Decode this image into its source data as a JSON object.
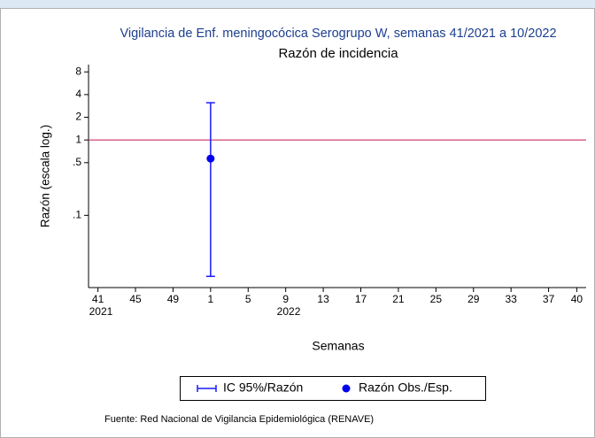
{
  "chart_data": {
    "type": "errorbar",
    "title": "Vigilancia de Enf. meningocócica Serogrupo W, semanas 41/2021 a 10/2022",
    "subtitle": "Razón de incidencia",
    "y_label": "Razón (escala log.)",
    "x_label": "Semanas",
    "source": "Fuente: Red Nacional de Vigilancia Epidemiológica (RENAVE)",
    "log_y": true,
    "xlim": [
      -1,
      52
    ],
    "ylim": [
      0.011,
      10
    ],
    "yticks": [
      8,
      4,
      2,
      1,
      {
        "value": 0.5,
        "label": ".5"
      },
      {
        "value": 0.1,
        "label": ".1"
      }
    ],
    "xticks": [
      {
        "value": 0,
        "label": "41"
      },
      {
        "value": 4,
        "label": "45"
      },
      {
        "value": 8,
        "label": "49"
      },
      {
        "value": 12,
        "label": "1"
      },
      {
        "value": 16,
        "label": "5"
      },
      {
        "value": 20,
        "label": "9"
      },
      {
        "value": 24,
        "label": "13"
      },
      {
        "value": 28,
        "label": "17"
      },
      {
        "value": 32,
        "label": "21"
      },
      {
        "value": 36,
        "label": "25"
      },
      {
        "value": 40,
        "label": "29"
      },
      {
        "value": 44,
        "label": "33"
      },
      {
        "value": 48,
        "label": "37"
      },
      {
        "value": 51,
        "label": "40"
      }
    ],
    "year_labels": [
      {
        "value": 0,
        "label": "2021"
      },
      {
        "value": 20,
        "label": "2022"
      }
    ],
    "reference_line": 1,
    "reference_color": "#c8325f",
    "x": [
      12
    ],
    "series": [
      {
        "name": "IC 95%/Razón",
        "color": "#1a1aff",
        "low": [
          0.0155
        ],
        "high": [
          3.12
        ]
      },
      {
        "name": "Razón Obs./Esp.",
        "color": "#0000ee",
        "values": [
          0.566
        ]
      }
    ]
  }
}
